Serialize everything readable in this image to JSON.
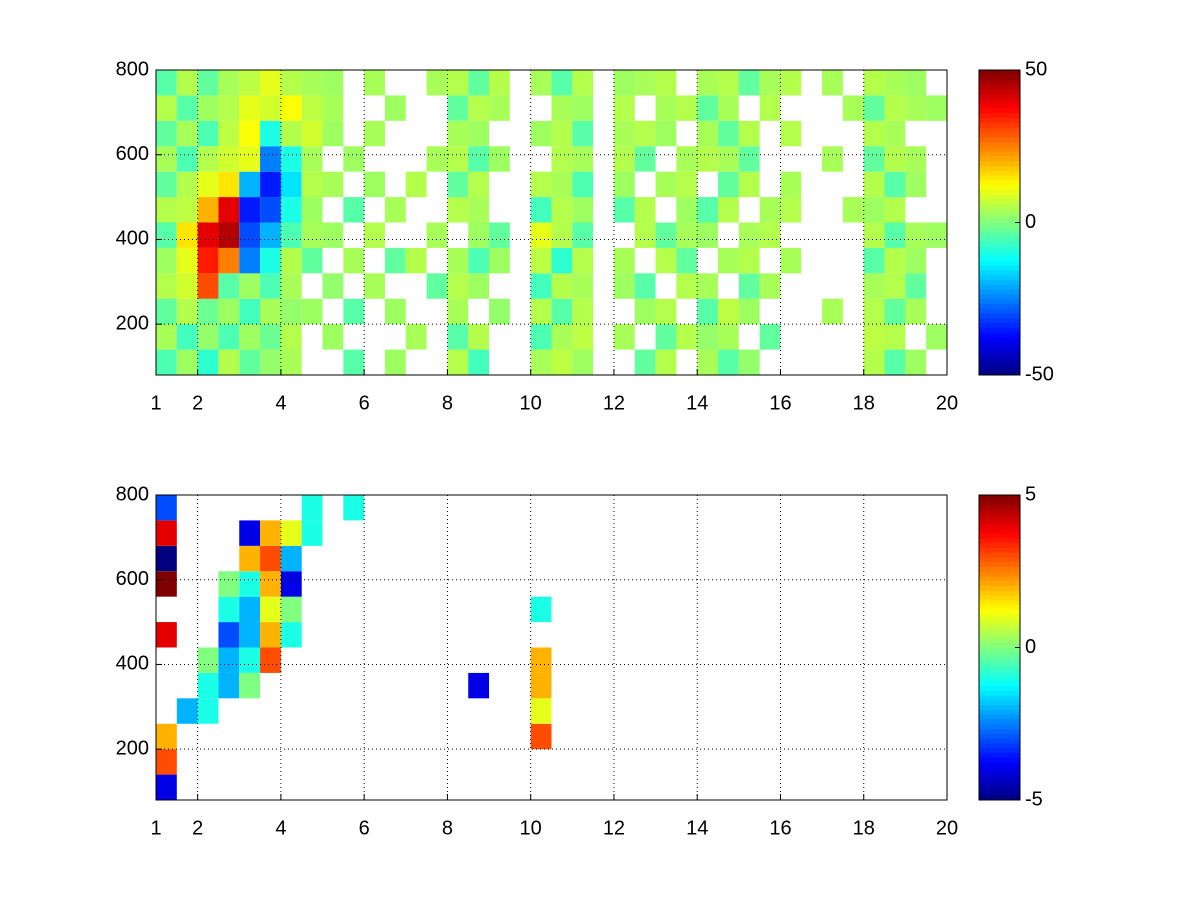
{
  "chart_data": [
    {
      "type": "heatmap",
      "colormap": "jet",
      "grid": true,
      "xlim": [
        1,
        20
      ],
      "ylim": [
        80,
        800
      ],
      "xticks": [
        1,
        2,
        4,
        6,
        8,
        10,
        12,
        14,
        16,
        18,
        20
      ],
      "yticks": [
        200,
        400,
        600,
        800
      ],
      "clim": [
        -50,
        50
      ],
      "cticks": [
        -50,
        0,
        50
      ],
      "xbins": [
        1,
        1.5,
        2,
        2.5,
        3,
        3.5,
        4,
        4.5,
        5,
        5.5,
        6,
        6.5,
        7,
        7.5,
        8,
        8.5,
        9,
        9.5,
        10,
        10.5,
        11,
        11.5,
        12,
        12.5,
        13,
        13.5,
        14,
        14.5,
        15,
        15.5,
        16,
        16.5,
        17,
        17.5,
        18,
        18.5,
        19,
        19.5,
        20
      ],
      "ybins": [
        80,
        140,
        200,
        260,
        320,
        380,
        440,
        500,
        560,
        620,
        680,
        740,
        800
      ],
      "z": [
        [
          -5,
          3,
          -8,
          5,
          -3,
          2,
          4,
          null,
          null,
          -4,
          null,
          3,
          null,
          null,
          5,
          -6,
          null,
          null,
          4,
          6,
          3,
          null,
          null,
          -3,
          5,
          null,
          4,
          -4,
          2,
          null,
          null,
          null,
          null,
          null,
          5,
          -4,
          3,
          null
        ],
        [
          4,
          -6,
          2,
          -5,
          3,
          -2,
          5,
          null,
          3,
          null,
          null,
          null,
          4,
          null,
          -4,
          5,
          null,
          null,
          -5,
          4,
          6,
          null,
          4,
          null,
          -3,
          5,
          2,
          4,
          null,
          -3,
          null,
          null,
          null,
          null,
          6,
          5,
          null,
          3
        ],
        [
          -3,
          5,
          -2,
          3,
          -6,
          4,
          2,
          3,
          null,
          -4,
          null,
          3,
          null,
          null,
          4,
          null,
          2,
          null,
          5,
          -4,
          5,
          null,
          null,
          3,
          5,
          null,
          -4,
          6,
          3,
          null,
          null,
          null,
          4,
          null,
          5,
          -3,
          4,
          null
        ],
        [
          5,
          8,
          30,
          -4,
          3,
          -5,
          4,
          null,
          2,
          null,
          4,
          null,
          null,
          -3,
          5,
          3,
          null,
          null,
          -6,
          5,
          4,
          null,
          3,
          -4,
          null,
          5,
          4,
          null,
          -3,
          4,
          null,
          null,
          null,
          null,
          4,
          5,
          -3,
          null
        ],
        [
          3,
          10,
          35,
          25,
          -25,
          -10,
          5,
          -3,
          null,
          4,
          null,
          -3,
          5,
          null,
          4,
          -5,
          3,
          null,
          6,
          -8,
          5,
          null,
          4,
          null,
          5,
          -3,
          null,
          4,
          5,
          null,
          4,
          null,
          null,
          null,
          -4,
          5,
          3,
          null
        ],
        [
          -4,
          15,
          40,
          45,
          -30,
          -20,
          -5,
          4,
          3,
          null,
          5,
          null,
          null,
          4,
          null,
          3,
          -3,
          null,
          10,
          5,
          -4,
          null,
          null,
          5,
          -3,
          4,
          3,
          null,
          4,
          5,
          null,
          null,
          null,
          null,
          5,
          -4,
          4,
          3
        ],
        [
          5,
          6,
          20,
          40,
          -35,
          -30,
          -10,
          3,
          null,
          -4,
          null,
          4,
          null,
          null,
          5,
          4,
          null,
          null,
          -6,
          5,
          3,
          null,
          -4,
          5,
          null,
          3,
          -4,
          5,
          null,
          4,
          5,
          null,
          null,
          4,
          3,
          5,
          null,
          null
        ],
        [
          -3,
          5,
          10,
          15,
          -20,
          -35,
          -15,
          5,
          4,
          null,
          3,
          null,
          5,
          null,
          -3,
          5,
          null,
          null,
          5,
          4,
          -5,
          null,
          3,
          null,
          4,
          5,
          null,
          -3,
          5,
          null,
          4,
          null,
          null,
          null,
          5,
          -4,
          3,
          null
        ],
        [
          4,
          -5,
          5,
          8,
          10,
          -25,
          -10,
          4,
          null,
          3,
          null,
          null,
          null,
          4,
          5,
          -4,
          3,
          null,
          null,
          5,
          4,
          null,
          5,
          -3,
          null,
          4,
          5,
          4,
          -3,
          null,
          null,
          null,
          4,
          null,
          -3,
          5,
          4,
          null
        ],
        [
          -3,
          4,
          -5,
          6,
          12,
          -10,
          5,
          8,
          3,
          null,
          4,
          null,
          null,
          null,
          4,
          3,
          null,
          null,
          3,
          5,
          -4,
          null,
          4,
          5,
          3,
          null,
          4,
          -3,
          5,
          null,
          5,
          null,
          null,
          null,
          5,
          4,
          null,
          null
        ],
        [
          5,
          -4,
          3,
          5,
          10,
          8,
          12,
          6,
          4,
          null,
          null,
          3,
          null,
          null,
          -3,
          5,
          4,
          null,
          null,
          4,
          3,
          null,
          5,
          null,
          4,
          5,
          -3,
          4,
          null,
          5,
          null,
          null,
          null,
          4,
          -3,
          5,
          4,
          3
        ],
        [
          -4,
          5,
          -3,
          4,
          6,
          10,
          5,
          4,
          3,
          null,
          4,
          null,
          null,
          4,
          5,
          -3,
          5,
          null,
          4,
          -4,
          5,
          null,
          3,
          4,
          5,
          null,
          4,
          5,
          -3,
          4,
          5,
          null,
          4,
          null,
          5,
          4,
          3,
          null
        ]
      ]
    },
    {
      "type": "heatmap",
      "colormap": "jet",
      "grid": true,
      "xlim": [
        1,
        20
      ],
      "ylim": [
        80,
        800
      ],
      "xticks": [
        1,
        2,
        4,
        6,
        8,
        10,
        12,
        14,
        16,
        18,
        20
      ],
      "yticks": [
        200,
        400,
        600,
        800
      ],
      "clim": [
        -5,
        5
      ],
      "cticks": [
        -5,
        0,
        5
      ],
      "xbins": [
        1,
        1.5,
        2,
        2.5,
        3,
        3.5,
        4,
        4.5,
        5,
        5.5,
        6,
        6.5,
        7,
        7.5,
        8,
        8.5,
        9,
        9.5,
        10,
        10.5,
        11,
        11.5,
        12,
        12.5,
        13,
        13.5,
        14,
        14.5,
        15,
        15.5,
        16,
        16.5,
        17,
        17.5,
        18,
        18.5,
        19,
        19.5,
        20
      ],
      "ybins": [
        80,
        140,
        200,
        260,
        320,
        380,
        440,
        500,
        560,
        620,
        680,
        740,
        800
      ],
      "z": [
        [
          -4,
          null,
          null,
          null,
          null,
          null,
          null,
          null,
          null,
          null,
          null,
          null,
          null,
          null,
          null,
          null,
          null,
          null,
          null,
          null,
          null,
          null,
          null,
          null,
          null,
          null,
          null,
          null,
          null,
          null,
          null,
          null,
          null,
          null,
          null,
          null,
          null,
          null
        ],
        [
          3,
          null,
          null,
          null,
          null,
          null,
          null,
          null,
          null,
          null,
          null,
          null,
          null,
          null,
          null,
          null,
          null,
          null,
          null,
          null,
          null,
          null,
          null,
          null,
          null,
          null,
          null,
          null,
          null,
          null,
          null,
          null,
          null,
          null,
          null,
          null,
          null,
          null
        ],
        [
          2,
          null,
          null,
          null,
          null,
          null,
          null,
          null,
          null,
          null,
          null,
          null,
          null,
          null,
          null,
          null,
          null,
          null,
          3,
          null,
          null,
          null,
          null,
          null,
          null,
          null,
          null,
          null,
          null,
          null,
          null,
          null,
          null,
          null,
          null,
          null,
          null,
          null
        ],
        [
          null,
          -2,
          -1,
          null,
          null,
          null,
          null,
          null,
          null,
          null,
          null,
          null,
          null,
          null,
          null,
          null,
          null,
          null,
          1,
          null,
          null,
          null,
          null,
          null,
          null,
          null,
          null,
          null,
          null,
          null,
          null,
          null,
          null,
          null,
          null,
          null,
          null,
          null
        ],
        [
          null,
          null,
          -1,
          -2,
          0,
          null,
          null,
          null,
          null,
          null,
          null,
          null,
          null,
          null,
          null,
          -4,
          null,
          null,
          2,
          null,
          null,
          null,
          null,
          null,
          null,
          null,
          null,
          null,
          null,
          null,
          null,
          null,
          null,
          null,
          null,
          null,
          null,
          null
        ],
        [
          null,
          null,
          0,
          -2,
          -1,
          3,
          null,
          null,
          null,
          null,
          null,
          null,
          null,
          null,
          null,
          null,
          null,
          null,
          2,
          null,
          null,
          null,
          null,
          null,
          null,
          null,
          null,
          null,
          null,
          null,
          null,
          null,
          null,
          null,
          null,
          null,
          null,
          null
        ],
        [
          4,
          null,
          null,
          -3,
          -2,
          2,
          -1,
          null,
          null,
          null,
          null,
          null,
          null,
          null,
          null,
          null,
          null,
          null,
          null,
          null,
          null,
          null,
          null,
          null,
          null,
          null,
          null,
          null,
          null,
          null,
          null,
          null,
          null,
          null,
          null,
          null,
          null,
          null
        ],
        [
          null,
          null,
          null,
          -1,
          -2,
          1,
          0,
          null,
          null,
          null,
          null,
          null,
          null,
          null,
          null,
          null,
          null,
          null,
          -1,
          null,
          null,
          null,
          null,
          null,
          null,
          null,
          null,
          null,
          null,
          null,
          null,
          null,
          null,
          null,
          null,
          null,
          null,
          null
        ],
        [
          5,
          null,
          null,
          0,
          -1,
          2,
          -4,
          null,
          null,
          null,
          null,
          null,
          null,
          null,
          null,
          null,
          null,
          null,
          null,
          null,
          null,
          null,
          null,
          null,
          null,
          null,
          null,
          null,
          null,
          null,
          null,
          null,
          null,
          null,
          null,
          null,
          null,
          null
        ],
        [
          -5,
          null,
          null,
          null,
          2,
          3,
          -2,
          null,
          null,
          null,
          null,
          null,
          null,
          null,
          null,
          null,
          null,
          null,
          null,
          null,
          null,
          null,
          null,
          null,
          null,
          null,
          null,
          null,
          null,
          null,
          null,
          null,
          null,
          null,
          null,
          null,
          null,
          null
        ],
        [
          4,
          null,
          null,
          null,
          -4,
          2,
          1,
          -1,
          null,
          null,
          null,
          null,
          null,
          null,
          null,
          null,
          null,
          null,
          null,
          null,
          null,
          null,
          null,
          null,
          null,
          null,
          null,
          null,
          null,
          null,
          null,
          null,
          null,
          null,
          null,
          null,
          null,
          null
        ],
        [
          -3,
          null,
          null,
          null,
          null,
          null,
          null,
          -1,
          null,
          -1,
          null,
          null,
          null,
          null,
          null,
          null,
          null,
          null,
          null,
          null,
          null,
          null,
          null,
          null,
          null,
          null,
          null,
          null,
          null,
          null,
          null,
          null,
          null,
          null,
          null,
          null,
          null,
          null
        ]
      ]
    }
  ]
}
